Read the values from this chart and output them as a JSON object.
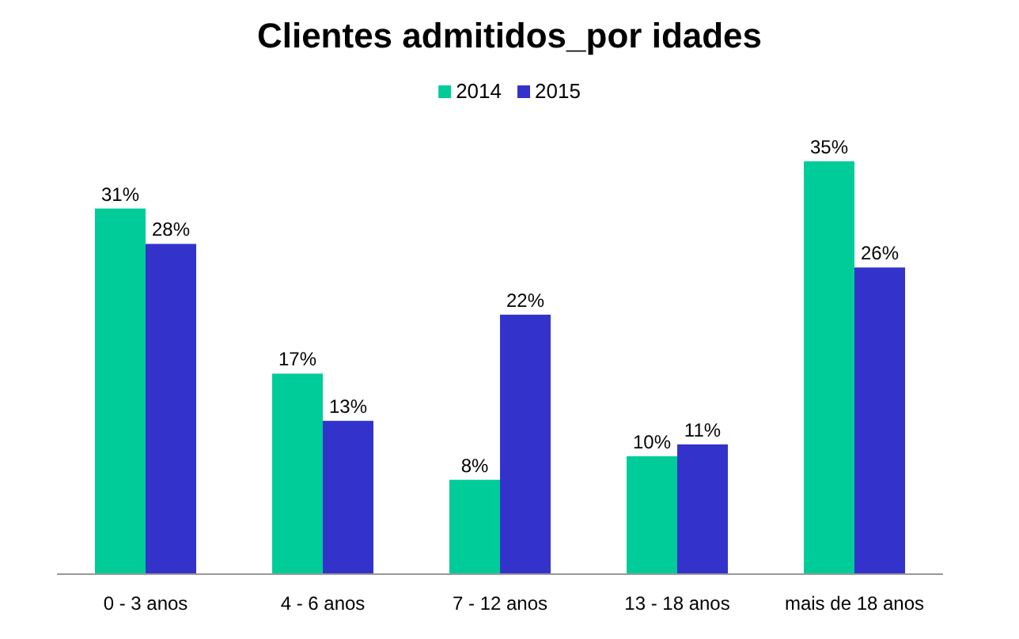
{
  "chart_data": {
    "type": "bar",
    "title": "Clientes admitidos_por idades",
    "categories": [
      "0 - 3 anos",
      "4 - 6 anos",
      "7 - 12 anos",
      "13 - 18 anos",
      "mais de 18 anos"
    ],
    "series": [
      {
        "name": "2014",
        "color": "#00cc99",
        "values": [
          31,
          17,
          8,
          10,
          35
        ],
        "value_labels": [
          "31%",
          "17%",
          "8%",
          "10%",
          "35%"
        ]
      },
      {
        "name": "2015",
        "color": "#3333cc",
        "values": [
          28,
          13,
          22,
          11,
          26
        ],
        "value_labels": [
          "28%",
          "13%",
          "22%",
          "11%",
          "26%"
        ]
      }
    ],
    "legend": "top"
  }
}
